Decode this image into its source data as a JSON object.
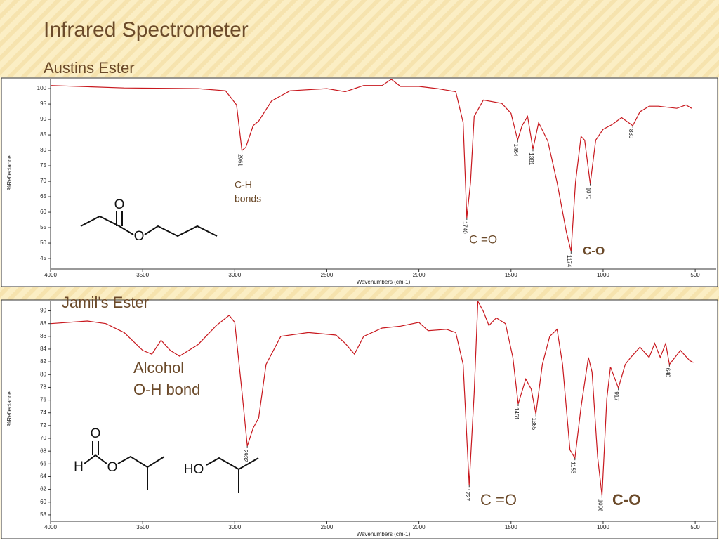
{
  "title": "Infrared Spectrometer",
  "chart_data": [
    {
      "type": "line",
      "title": "Austins Ester",
      "x_label": "Wavenumbers (cm-1)",
      "y_label": "%Reflectance",
      "color": "#c8181e",
      "x": [
        4000,
        3600,
        3200,
        3050,
        2990,
        2961,
        2940,
        2900,
        2870,
        2800,
        2700,
        2500,
        2400,
        2300,
        2200,
        2150,
        2100,
        2000,
        1900,
        1800,
        1760,
        1740,
        1720,
        1700,
        1650,
        1550,
        1500,
        1464,
        1440,
        1410,
        1381,
        1350,
        1300,
        1250,
        1200,
        1174,
        1150,
        1120,
        1100,
        1070,
        1040,
        1000,
        950,
        900,
        839,
        800,
        750,
        700,
        600,
        550,
        520
      ],
      "values": [
        101,
        100.2,
        100,
        99.3,
        94.7,
        80,
        81,
        88,
        89.5,
        96,
        99.3,
        100,
        99,
        101,
        101,
        103,
        100.7,
        100.7,
        100,
        99,
        89,
        58.2,
        69.6,
        91,
        96.3,
        95.2,
        92,
        83.3,
        88,
        91,
        80.4,
        89,
        83,
        69.6,
        53.7,
        47.3,
        69.6,
        84.5,
        83.3,
        69.2,
        83.3,
        86.8,
        88.4,
        90.6,
        88,
        92.5,
        94.3,
        94.3,
        93.6,
        94.7,
        93.6
      ],
      "xlim": [
        4000,
        386
      ],
      "xticks": [
        4000,
        3500,
        3000,
        2500,
        2000,
        1500,
        1000,
        500
      ],
      "ylim": [
        41.6,
        103.2
      ],
      "yticks": [
        45,
        50,
        55,
        60,
        65,
        70,
        75,
        80,
        85,
        90,
        95,
        100
      ],
      "peaks": [
        {
          "x": 2961,
          "y": 80,
          "label": "2961"
        },
        {
          "x": 1740,
          "y": 58.2,
          "label": "1740"
        },
        {
          "x": 1464,
          "y": 83.3,
          "label": "1464"
        },
        {
          "x": 1381,
          "y": 80.4,
          "label": "1381"
        },
        {
          "x": 1174,
          "y": 47.3,
          "label": "1174"
        },
        {
          "x": 1070,
          "y": 69.2,
          "label": "1070"
        },
        {
          "x": 839,
          "y": 88,
          "label": "839"
        }
      ],
      "annotations": [
        "C-H",
        "bonds",
        "C =O",
        "C-O"
      ]
    },
    {
      "type": "line",
      "title": "Jamil's Ester",
      "x_label": "Wavenumbers (cm-1)",
      "y_label": "%Reflectance",
      "color": "#c8181e",
      "x": [
        4000,
        3800,
        3700,
        3600,
        3500,
        3450,
        3400,
        3350,
        3300,
        3200,
        3100,
        3030,
        3000,
        2960,
        2932,
        2900,
        2870,
        2830,
        2750,
        2600,
        2450,
        2400,
        2350,
        2300,
        2200,
        2100,
        2000,
        1950,
        1850,
        1800,
        1760,
        1727,
        1700,
        1680,
        1650,
        1620,
        1580,
        1530,
        1490,
        1461,
        1420,
        1390,
        1365,
        1330,
        1290,
        1250,
        1220,
        1180,
        1153,
        1120,
        1080,
        1060,
        1030,
        1006,
        980,
        960,
        917,
        880,
        850,
        800,
        750,
        720,
        690,
        660,
        640,
        580,
        530,
        510
      ],
      "values": [
        88,
        88.4,
        88,
        86.6,
        83.8,
        83.2,
        85.4,
        83.8,
        82.9,
        84.7,
        87.7,
        89.3,
        88.2,
        77.1,
        68.8,
        71.6,
        73.2,
        81.6,
        86,
        86.6,
        86.2,
        84.9,
        83.2,
        86,
        87.3,
        87.6,
        88.2,
        86.9,
        87.1,
        86.6,
        81.6,
        62.7,
        77.1,
        91.5,
        89.9,
        87.7,
        88.9,
        88,
        82.7,
        75.4,
        79.3,
        77.7,
        73.8,
        81.6,
        86,
        87.1,
        81.6,
        68.2,
        66.9,
        74.9,
        82.7,
        80.4,
        67.1,
        61,
        76.2,
        81.2,
        77.9,
        81.6,
        82.7,
        84.3,
        82.7,
        84.9,
        82.7,
        84.9,
        81.6,
        83.8,
        82.2,
        81.9
      ],
      "xlim": [
        4000,
        386
      ],
      "xticks": [
        4000,
        3500,
        3000,
        2500,
        2000,
        1500,
        1000,
        500
      ],
      "ylim": [
        57,
        91.6
      ],
      "yticks": [
        58,
        60,
        62,
        64,
        66,
        68,
        70,
        72,
        74,
        76,
        78,
        80,
        82,
        84,
        86,
        88,
        90
      ],
      "peaks": [
        {
          "x": 2932,
          "y": 68.8,
          "label": "2932"
        },
        {
          "x": 1727,
          "y": 62.7,
          "label": "1727"
        },
        {
          "x": 1461,
          "y": 75.4,
          "label": "1461"
        },
        {
          "x": 1365,
          "y": 73.8,
          "label": "1365"
        },
        {
          "x": 1153,
          "y": 66.9,
          "label": "1153"
        },
        {
          "x": 1006,
          "y": 61,
          "label": "1006"
        },
        {
          "x": 917,
          "y": 77.9,
          "label": "917"
        },
        {
          "x": 640,
          "y": 81.6,
          "label": "640"
        }
      ],
      "annotations": [
        "Alcohol",
        "O-H bond",
        "C =O",
        "C-O"
      ]
    }
  ],
  "molecules": [
    [
      "O",
      "O"
    ],
    [
      "O",
      "H",
      "O"
    ],
    [
      "HO"
    ]
  ]
}
